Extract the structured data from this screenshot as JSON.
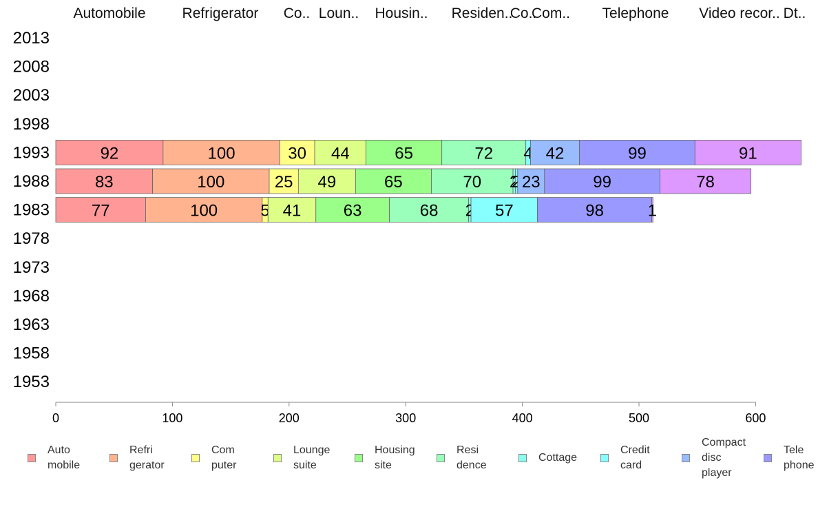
{
  "chart_data": {
    "type": "bar",
    "orientation": "horizontal",
    "stacked": true,
    "title": "",
    "xlabel": "",
    "ylabel": "",
    "xlim": [
      0,
      640
    ],
    "x_ticks": [
      "0",
      "100",
      "200",
      "300",
      "400",
      "500",
      "600"
    ],
    "categories": [
      "2013",
      "2008",
      "2003",
      "1998",
      "1993",
      "1988",
      "1983",
      "1978",
      "1973",
      "1968",
      "1963",
      "1958",
      "1953"
    ],
    "top_labels": [
      "Automobile",
      "Refrigerator",
      "Co..",
      "Loun..",
      "Housin..",
      "Residen..",
      "Co..",
      "Com..",
      "Telephone",
      "Video recor..",
      "Dt.."
    ],
    "series": [
      {
        "name": "Auto mobile",
        "legend_lines": [
          "Auto",
          "mobile"
        ],
        "color": "#ff9999",
        "values": [
          null,
          null,
          null,
          null,
          92,
          83,
          77,
          null,
          null,
          null,
          null,
          null,
          null
        ]
      },
      {
        "name": "Refri gerator",
        "legend_lines": [
          "Refri",
          "gerator"
        ],
        "color": "#ffb38f",
        "values": [
          null,
          null,
          null,
          null,
          100,
          100,
          100,
          null,
          null,
          null,
          null,
          null,
          null
        ]
      },
      {
        "name": "Com puter",
        "legend_lines": [
          "Com",
          "puter"
        ],
        "color": "#ffff88",
        "values": [
          null,
          null,
          null,
          null,
          30,
          25,
          5,
          null,
          null,
          null,
          null,
          null,
          null
        ]
      },
      {
        "name": "Lounge suite",
        "legend_lines": [
          "Lounge",
          "suite"
        ],
        "color": "#ddff88",
        "values": [
          null,
          null,
          null,
          null,
          44,
          49,
          41,
          null,
          null,
          null,
          null,
          null,
          null
        ]
      },
      {
        "name": "Housing site",
        "legend_lines": [
          "Housing",
          "site"
        ],
        "color": "#99ff88",
        "values": [
          null,
          null,
          null,
          null,
          65,
          65,
          63,
          null,
          null,
          null,
          null,
          null,
          null
        ]
      },
      {
        "name": "Resi dence",
        "legend_lines": [
          "Resi",
          "dence"
        ],
        "color": "#99ffbb",
        "values": [
          null,
          null,
          null,
          null,
          72,
          70,
          68,
          null,
          null,
          null,
          null,
          null,
          null
        ]
      },
      {
        "name": "Cottage",
        "legend_lines": [
          "Cottage"
        ],
        "color": "#88ffee",
        "values": [
          null,
          null,
          null,
          null,
          null,
          2,
          2,
          null,
          null,
          null,
          null,
          null,
          null
        ]
      },
      {
        "name": "Credit card",
        "legend_lines": [
          "Credit",
          "card"
        ],
        "color": "#88ffff",
        "values": [
          null,
          null,
          null,
          null,
          4,
          2,
          57,
          null,
          null,
          null,
          null,
          null,
          null
        ]
      },
      {
        "name": "Compact disc player",
        "legend_lines": [
          "Compact",
          "disc",
          "player"
        ],
        "color": "#99bbff",
        "values": [
          null,
          null,
          null,
          null,
          42,
          23,
          null,
          null,
          null,
          null,
          null,
          null,
          null
        ]
      },
      {
        "name": "Tele phone",
        "legend_lines": [
          "Tele",
          "phone"
        ],
        "color": "#9999ff",
        "values": [
          null,
          null,
          null,
          null,
          99,
          99,
          98,
          null,
          null,
          null,
          null,
          null,
          null
        ]
      },
      {
        "name": "Video recorder",
        "legend_lines": [],
        "color": "#dd99ff",
        "values": [
          null,
          null,
          null,
          null,
          91,
          78,
          1,
          null,
          null,
          null,
          null,
          null,
          null
        ]
      }
    ],
    "grid": false,
    "legend_position": "bottom"
  }
}
